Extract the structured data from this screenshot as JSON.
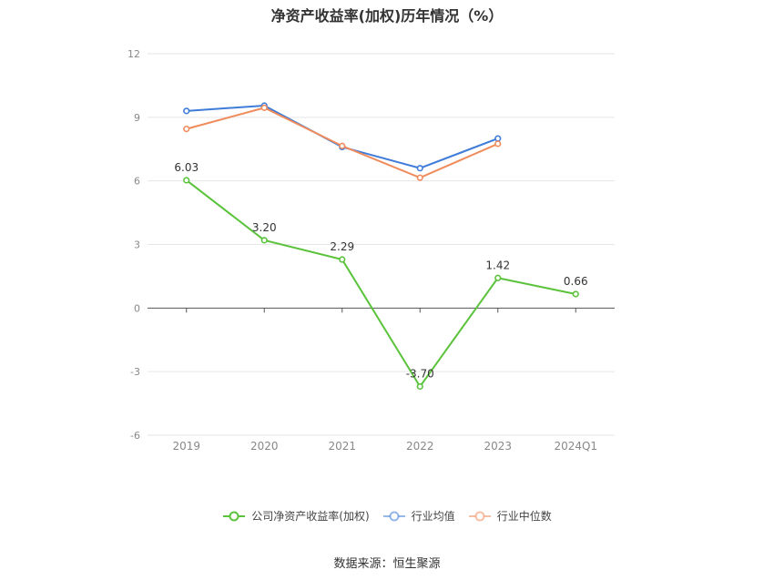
{
  "chart_data": {
    "type": "line",
    "title": "净资产收益率(加权)历年情况（%）",
    "categories": [
      "2019",
      "2020",
      "2021",
      "2022",
      "2023",
      "2024Q1"
    ],
    "ylim": [
      -6,
      12
    ],
    "yticks": [
      -6,
      -3,
      0,
      3,
      6,
      9,
      12
    ],
    "grid": true,
    "legend_position": "bottom",
    "series": [
      {
        "name": "公司净资产收益率(加权)",
        "color": "#5ac33b",
        "values": [
          6.03,
          3.2,
          2.29,
          -3.7,
          1.42,
          0.66
        ],
        "labels": [
          "6.03",
          "3.20",
          "2.29",
          "-3.70",
          "1.42",
          "0.66"
        ]
      },
      {
        "name": "行业均值",
        "color": "#3f7bd8",
        "values": [
          9.3,
          9.55,
          7.6,
          6.6,
          8.0,
          null
        ]
      },
      {
        "name": "行业中位数",
        "color": "#f08b5c",
        "values": [
          8.45,
          9.45,
          7.65,
          6.15,
          7.75,
          null
        ]
      }
    ]
  },
  "footer": {
    "source": "数据来源：恒生聚源"
  }
}
